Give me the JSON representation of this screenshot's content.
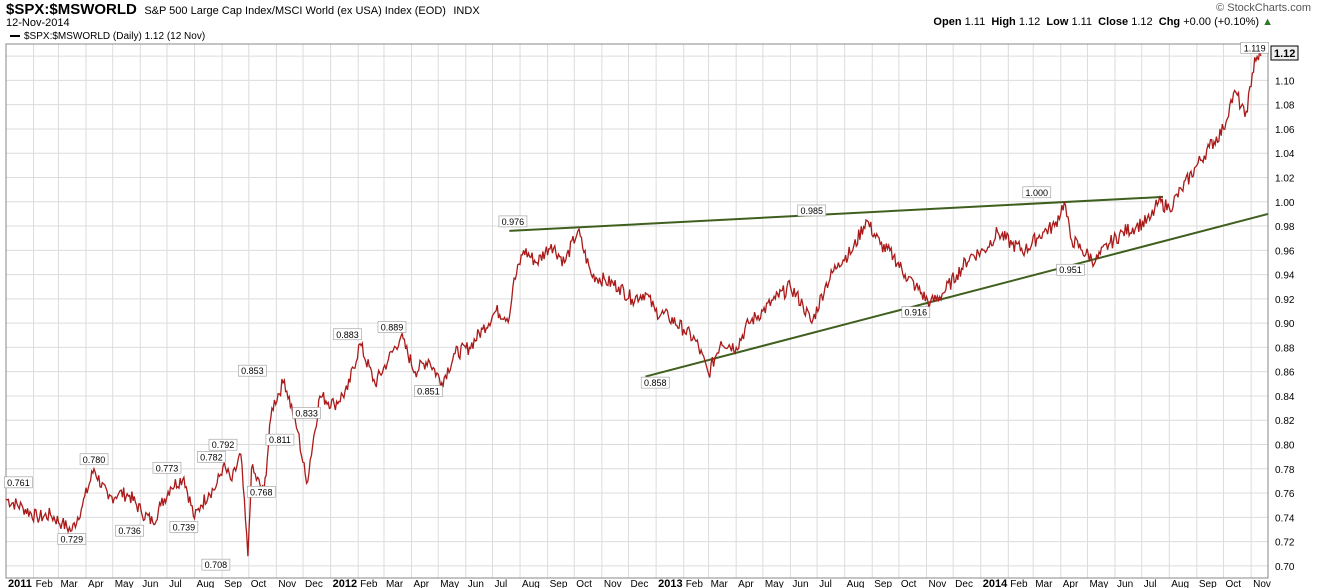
{
  "header": {
    "symbol": "$SPX:$MSWORLD",
    "description": "S&P 500 Large Cap Index/MSCI World (ex USA) Index (EOD)",
    "exchange": "INDX",
    "date": "12-Nov-2014",
    "credit": "© StockCharts.com",
    "ohlc": {
      "open_label": "Open",
      "open": "1.11",
      "high_label": "High",
      "high": "1.12",
      "low_label": "Low",
      "low": "1.11",
      "close_label": "Close",
      "close": "1.12",
      "chg_label": "Chg",
      "chg": "+0.00 (+0.10%)"
    }
  },
  "colors": {
    "price_line": "#aa1a1a",
    "price_line_dark": "#1a1a1a",
    "trendline": "#3f5f1f",
    "grid": "#dcdcdc",
    "last_badge": "#f0f0f0"
  },
  "chart_data": {
    "type": "line",
    "title": "$SPX:$MSWORLD",
    "legend": "$SPX:$MSWORLD (Daily) 1.12 (12 Nov)",
    "legend_placement": "top-left",
    "ylim": [
      0.69,
      1.13
    ],
    "y_ticks": [
      "0.70",
      "0.72",
      "0.74",
      "0.76",
      "0.78",
      "0.80",
      "0.82",
      "0.84",
      "0.86",
      "0.88",
      "0.90",
      "0.92",
      "0.94",
      "0.96",
      "0.98",
      "1.00",
      "1.02",
      "1.04",
      "1.06",
      "1.08",
      "1.10",
      "1.12"
    ],
    "x_labels": [
      "2011",
      "Feb",
      "Mar",
      "Apr",
      "May",
      "Jun",
      "Jul",
      "Aug",
      "Sep",
      "Oct",
      "Nov",
      "Dec",
      "2012",
      "Feb",
      "Mar",
      "Apr",
      "May",
      "Jun",
      "Jul",
      "Aug",
      "Sep",
      "Oct",
      "Nov",
      "Dec",
      "2013",
      "Feb",
      "Mar",
      "Apr",
      "May",
      "Jun",
      "Jul",
      "Aug",
      "Sep",
      "Oct",
      "Nov",
      "Dec",
      "2014",
      "Feb",
      "Mar",
      "Apr",
      "May",
      "Jun",
      "Jul",
      "Aug",
      "Sep",
      "Oct",
      "Nov"
    ],
    "grid": true,
    "series": [
      {
        "name": "$SPX:$MSWORLD",
        "x": [
          "2011-01-01",
          "2011-01-20",
          "2011-02-05",
          "2011-02-20",
          "2011-03-05",
          "2011-03-16",
          "2011-03-28",
          "2011-04-10",
          "2011-04-26",
          "2011-05-08",
          "2011-05-20",
          "2011-06-02",
          "2011-06-15",
          "2011-06-24",
          "2011-07-05",
          "2011-07-20",
          "2011-08-01",
          "2011-08-08",
          "2011-08-17",
          "2011-08-25",
          "2011-09-02",
          "2011-09-12",
          "2011-09-22",
          "2011-09-30",
          "2011-10-04",
          "2011-10-18",
          "2011-10-27",
          "2011-11-10",
          "2011-11-25",
          "2011-12-05",
          "2011-12-20",
          "2012-01-05",
          "2012-01-20",
          "2012-02-03",
          "2012-02-20",
          "2012-03-06",
          "2012-03-20",
          "2012-04-05",
          "2012-04-20",
          "2012-05-05",
          "2012-05-20",
          "2012-06-05",
          "2012-06-20",
          "2012-07-05",
          "2012-07-20",
          "2012-07-24",
          "2012-08-05",
          "2012-08-20",
          "2012-09-05",
          "2012-09-20",
          "2012-10-05",
          "2012-10-20",
          "2012-11-05",
          "2012-11-20",
          "2012-12-05",
          "2012-12-20",
          "2012-12-31",
          "2013-01-15",
          "2013-02-01",
          "2013-02-15",
          "2013-03-01",
          "2013-03-15",
          "2013-04-01",
          "2013-04-15",
          "2013-05-01",
          "2013-05-15",
          "2013-06-01",
          "2013-06-15",
          "2013-06-25",
          "2013-07-10",
          "2013-07-25",
          "2013-08-10",
          "2013-08-25",
          "2013-09-10",
          "2013-09-25",
          "2013-10-08",
          "2013-10-20",
          "2013-11-05",
          "2013-11-20",
          "2013-12-05",
          "2013-12-20",
          "2014-01-05",
          "2014-01-20",
          "2014-02-05",
          "2014-02-20",
          "2014-03-05",
          "2014-03-12",
          "2014-03-25",
          "2014-04-05",
          "2014-04-12",
          "2014-04-25",
          "2014-05-10",
          "2014-05-25",
          "2014-06-10",
          "2014-06-25",
          "2014-07-10",
          "2014-07-20",
          "2014-08-01",
          "2014-08-15",
          "2014-09-01",
          "2014-09-15",
          "2014-10-01",
          "2014-10-08",
          "2014-10-15",
          "2014-10-25",
          "2014-11-01",
          "2014-11-05",
          "2014-11-12"
        ],
        "y": [
          0.755,
          0.748,
          0.74,
          0.742,
          0.735,
          0.729,
          0.75,
          0.78,
          0.755,
          0.76,
          0.758,
          0.745,
          0.736,
          0.75,
          0.765,
          0.773,
          0.739,
          0.75,
          0.76,
          0.765,
          0.782,
          0.77,
          0.792,
          0.708,
          0.78,
          0.76,
          0.83,
          0.853,
          0.811,
          0.768,
          0.84,
          0.833,
          0.845,
          0.883,
          0.85,
          0.87,
          0.889,
          0.86,
          0.87,
          0.851,
          0.875,
          0.88,
          0.895,
          0.91,
          0.905,
          0.93,
          0.96,
          0.95,
          0.965,
          0.95,
          0.976,
          0.94,
          0.935,
          0.93,
          0.92,
          0.925,
          0.91,
          0.905,
          0.895,
          0.885,
          0.858,
          0.885,
          0.88,
          0.9,
          0.91,
          0.92,
          0.93,
          0.915,
          0.9,
          0.93,
          0.95,
          0.96,
          0.985,
          0.965,
          0.955,
          0.94,
          0.93,
          0.916,
          0.925,
          0.94,
          0.955,
          0.96,
          0.975,
          0.965,
          0.96,
          0.97,
          0.975,
          0.98,
          1.0,
          0.97,
          0.96,
          0.951,
          0.965,
          0.975,
          0.98,
          0.985,
          1.0,
          0.995,
          1.01,
          1.03,
          1.045,
          1.06,
          1.08,
          1.09,
          1.07,
          1.095,
          1.119,
          1.12
        ]
      }
    ],
    "annotations": [
      {
        "label": "0.761",
        "value": 0.761
      },
      {
        "label": "0.729",
        "value": 0.729
      },
      {
        "label": "0.780",
        "value": 0.78
      },
      {
        "label": "0.736",
        "value": 0.736
      },
      {
        "label": "0.773",
        "value": 0.773
      },
      {
        "label": "0.739",
        "value": 0.739
      },
      {
        "label": "0.782",
        "value": 0.782
      },
      {
        "label": "0.792",
        "value": 0.792
      },
      {
        "label": "0.708",
        "value": 0.708
      },
      {
        "label": "0.853",
        "value": 0.853
      },
      {
        "label": "0.811",
        "value": 0.811
      },
      {
        "label": "0.768",
        "value": 0.768
      },
      {
        "label": "0.833",
        "value": 0.833
      },
      {
        "label": "0.883",
        "value": 0.883
      },
      {
        "label": "0.889",
        "value": 0.889
      },
      {
        "label": "0.851",
        "value": 0.851
      },
      {
        "label": "0.976",
        "value": 0.976
      },
      {
        "label": "0.858",
        "value": 0.858
      },
      {
        "label": "0.985",
        "value": 0.985
      },
      {
        "label": "0.916",
        "value": 0.916
      },
      {
        "label": "1.000",
        "value": 1.0
      },
      {
        "label": "0.951",
        "value": 0.951
      },
      {
        "label": "1.119",
        "value": 1.119
      }
    ],
    "trendlines": [
      {
        "name": "upper",
        "from": {
          "x": "2012-07-20",
          "y": 0.976
        },
        "to": {
          "x": "2014-07-25",
          "y": 1.004
        }
      },
      {
        "name": "lower",
        "from": {
          "x": "2012-12-20",
          "y": 0.856
        },
        "to": {
          "x": "2014-11-20",
          "y": 0.99
        }
      }
    ],
    "last_value_badge": "1.12"
  }
}
